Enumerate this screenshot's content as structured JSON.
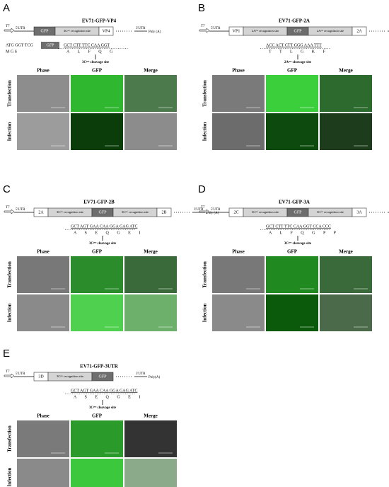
{
  "columns": [
    "Phase",
    "GFP",
    "Merge"
  ],
  "rows": [
    "Transfection",
    "Infection"
  ],
  "panels": [
    {
      "letter": "A",
      "title": "EV71-GFP-VP4",
      "promoter": "T7",
      "utr5": "5'UTR",
      "boxes": [
        "GFP",
        "3Cᵖʳᵒ recognition site",
        "VP4"
      ],
      "utr3": "3'UTR",
      "polya": "Poly (A)",
      "seq_left": "ATG GGT TCG",
      "aa_left": "M G S",
      "tag": "GFP",
      "sequence": "GCT CTT TTC CAA GGT",
      "aminoacids": "A L F Q G",
      "cleavage": "3Cᵖʳᵒ cleavage site",
      "tile_colors": [
        [
          "#8d8d8d",
          "#2fb82f",
          "#4d7a4d"
        ],
        [
          "#9c9c9c",
          "#0b3d0b",
          "#8c8c8c"
        ]
      ]
    },
    {
      "letter": "B",
      "title": "EV71-GFP-2A",
      "promoter": "T7",
      "utr5": "5'UTR",
      "boxes": [
        "VP1",
        "2Aᵖʳᵒ recognition site",
        "GFP",
        "2Aᵖʳᵒ recognition site",
        "2A"
      ],
      "utr3": "3'UTR",
      "polya": "Poly (A)",
      "sequence": "ACC ACT CTT GGG AAA TTT",
      "aminoacids": "T T L G K F",
      "cleavage": "2Aᵖʳᵒ cleavage site",
      "tile_colors": [
        [
          "#7a7a7a",
          "#3ccf3c",
          "#2d6a2d"
        ],
        [
          "#6c6c6c",
          "#0d4a0d",
          "#1c3c1c"
        ]
      ]
    },
    {
      "letter": "C",
      "title": "EV71-GFP-2B",
      "promoter": "T7",
      "utr5": "5'UTR",
      "boxes": [
        "2A",
        "3Cᵖʳᵒ recognition site",
        "GFP",
        "3Cᵖʳᵒ recognition site",
        "2B"
      ],
      "utr3": "3'UTR",
      "polya": "Poly (A)",
      "sequence": "GCT AGT GAA CAA GGA GAG ATC",
      "aminoacids": "A S E Q G E I",
      "cleavage": "3Cᵖʳᵒ cleavage site",
      "tile_colors": [
        [
          "#787878",
          "#2a8c2a",
          "#3a6a3a"
        ],
        [
          "#8a8a8a",
          "#4fd04f",
          "#6cb06c"
        ]
      ]
    },
    {
      "letter": "D",
      "title": "EV71-GFP-3A",
      "promoter": "T7",
      "utr5": "5'UTR",
      "boxes": [
        "2C",
        "3Cᵖʳᵒ recognition site",
        "GFP",
        "3Cᵖʳᵒ recognition site",
        "3A"
      ],
      "utr3": "3'UTR",
      "polya": "Poly (A)",
      "sequence": "GCT CTT TTC CAA GGT CCA CCC",
      "aminoacids": "A L F Q G P P",
      "cleavage": "3Cᵖʳᵒ cleavage site",
      "tile_colors": [
        [
          "#787878",
          "#208a20",
          "#3a6a3a"
        ],
        [
          "#8a8a8a",
          "#0b5a0b",
          "#4a6a4a"
        ]
      ]
    },
    {
      "letter": "E",
      "title": "EV71-GFP-3UTR",
      "promoter": "T7",
      "utr5": "5'UTR",
      "boxes": [
        "3D",
        "3Cᵖʳᵒ recognition site",
        "GFP"
      ],
      "utr3": "3'UTR",
      "polya": "Poly(A)",
      "sequence": "GCT AGT GAA CAA GGA GAG ATC",
      "aminoacids": "A S E Q G E I",
      "cleavage": "3Cᵖʳᵒ cleavage site",
      "tile_colors": [
        [
          "#7a7a7a",
          "#2a9a2a",
          "#333333"
        ],
        [
          "#8a8a8a",
          "#3cc83c",
          "#8aaa8a"
        ]
      ]
    }
  ]
}
